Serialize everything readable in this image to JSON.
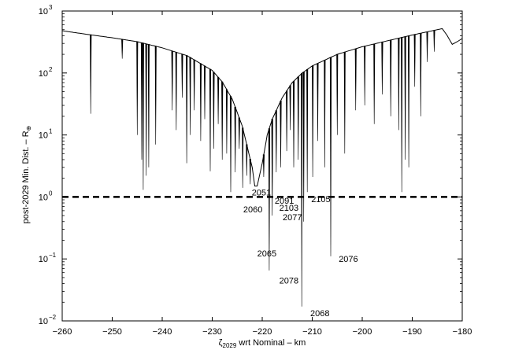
{
  "chart_data": {
    "type": "line",
    "xlabel": {
      "symbol": "ζ",
      "sub": "2029",
      "rest": " wrt Nominal – km"
    },
    "ylabel": {
      "main": "post-2029 Min. Dist. – R",
      "sub": "⊕"
    },
    "x_range": [
      -260,
      -180
    ],
    "y_range": [
      0.01,
      1000
    ],
    "y_scale": "log",
    "grid": false,
    "x_ticks": [
      -260,
      -250,
      -240,
      -230,
      -220,
      -210,
      -200,
      -190,
      -180
    ],
    "x_tick_labels": [
      "−260",
      "−250",
      "−240",
      "−230",
      "−220",
      "−210",
      "−200",
      "−190",
      "−180"
    ],
    "y_ticks": [
      {
        "value": 0.01,
        "base": "10",
        "exp": "−2"
      },
      {
        "value": 0.1,
        "base": "10",
        "exp": "−1"
      },
      {
        "value": 1,
        "base": "10",
        "exp": "0"
      },
      {
        "value": 10,
        "base": "10",
        "exp": "1"
      },
      {
        "value": 100,
        "base": "10",
        "exp": "2"
      },
      {
        "value": 1000,
        "base": "10",
        "exp": "3"
      }
    ],
    "threshold": {
      "value": 1,
      "style": "dashed"
    },
    "envelope": {
      "x": [
        -260,
        -255,
        -250,
        -245,
        -240,
        -235,
        -230,
        -228,
        -226,
        -224,
        -222,
        -221.5,
        -221,
        -220,
        -219,
        -218,
        -216,
        -214,
        -212,
        -210,
        -205,
        -200,
        -195,
        -190,
        -186,
        -185,
        -184,
        -183,
        -182,
        -181,
        -180
      ],
      "y": [
        480,
        420,
        370,
        320,
        255,
        190,
        110,
        72,
        38,
        14,
        3,
        1.5,
        1.5,
        3.5,
        10,
        18,
        40,
        70,
        100,
        130,
        200,
        265,
        330,
        410,
        480,
        500,
        520,
        400,
        290,
        320,
        360
      ]
    },
    "dips": [
      {
        "x": -254.3,
        "y": 22
      },
      {
        "x": -248.0,
        "y": 170
      },
      {
        "x": -245.0,
        "y": 10
      },
      {
        "x": -244.1,
        "y": 4
      },
      {
        "x": -243.8,
        "y": 1.3
      },
      {
        "x": -243.2,
        "y": 2.2
      },
      {
        "x": -242.7,
        "y": 3
      },
      {
        "x": -241.3,
        "y": 7
      },
      {
        "x": -238.0,
        "y": 25
      },
      {
        "x": -237.2,
        "y": 12
      },
      {
        "x": -236.0,
        "y": 40
      },
      {
        "x": -235.1,
        "y": 3.5
      },
      {
        "x": -234.4,
        "y": 10
      },
      {
        "x": -233.6,
        "y": 25
      },
      {
        "x": -232.3,
        "y": 8
      },
      {
        "x": -231.5,
        "y": 18
      },
      {
        "x": -230.4,
        "y": 2.6
      },
      {
        "x": -229.7,
        "y": 6
      },
      {
        "x": -228.8,
        "y": 15
      },
      {
        "x": -228.0,
        "y": 4
      },
      {
        "x": -227.1,
        "y": 5
      },
      {
        "x": -226.3,
        "y": 1.2
      },
      {
        "x": -225.4,
        "y": 2.5
      },
      {
        "x": -224.6,
        "y": 6
      },
      {
        "x": -223.9,
        "y": 1.4
      },
      {
        "x": -223.1,
        "y": 2.2
      },
      {
        "x": -222.4,
        "y": 1.6
      },
      {
        "x": -219.7,
        "y": 2.1
      },
      {
        "x": -218.6,
        "y": 0.065
      },
      {
        "x": -218.0,
        "y": 0.5
      },
      {
        "x": -217.2,
        "y": 2.5
      },
      {
        "x": -216.3,
        "y": 3
      },
      {
        "x": -215.1,
        "y": 5.5
      },
      {
        "x": -214.4,
        "y": 12
      },
      {
        "x": -213.7,
        "y": 3
      },
      {
        "x": -212.8,
        "y": 4
      },
      {
        "x": -212.1,
        "y": 0.017
      },
      {
        "x": -211.7,
        "y": 0.4
      },
      {
        "x": -211.0,
        "y": 1.2
      },
      {
        "x": -209.9,
        "y": 2.1
      },
      {
        "x": -208.9,
        "y": 8
      },
      {
        "x": -207.5,
        "y": 3
      },
      {
        "x": -206.3,
        "y": 0.11
      },
      {
        "x": -205.0,
        "y": 10
      },
      {
        "x": -203.5,
        "y": 5
      },
      {
        "x": -201.3,
        "y": 25
      },
      {
        "x": -199.5,
        "y": 30
      },
      {
        "x": -197.6,
        "y": 15
      },
      {
        "x": -196.0,
        "y": 45
      },
      {
        "x": -194.3,
        "y": 20
      },
      {
        "x": -192.7,
        "y": 12
      },
      {
        "x": -192.1,
        "y": 1.2
      },
      {
        "x": -191.4,
        "y": 4
      },
      {
        "x": -190.7,
        "y": 3
      },
      {
        "x": -189.5,
        "y": 60
      },
      {
        "x": -188.3,
        "y": 20
      },
      {
        "x": -187.0,
        "y": 150
      },
      {
        "x": -185.6,
        "y": 220
      }
    ],
    "annotations": [
      {
        "text": "2051",
        "x": -222.1,
        "y": 1.05
      },
      {
        "text": "2060",
        "x": -223.8,
        "y": 0.56
      },
      {
        "text": "2091",
        "x": -217.5,
        "y": 0.78
      },
      {
        "text": "2105",
        "x": -210.2,
        "y": 0.82
      },
      {
        "text": "2103",
        "x": -216.6,
        "y": 0.6
      },
      {
        "text": "2077",
        "x": -215.9,
        "y": 0.42
      },
      {
        "text": "2065",
        "x": -221.0,
        "y": 0.11
      },
      {
        "text": "2076",
        "x": -204.7,
        "y": 0.09
      },
      {
        "text": "2078",
        "x": -216.6,
        "y": 0.04
      },
      {
        "text": "2068",
        "x": -210.4,
        "y": 0.012
      }
    ]
  }
}
